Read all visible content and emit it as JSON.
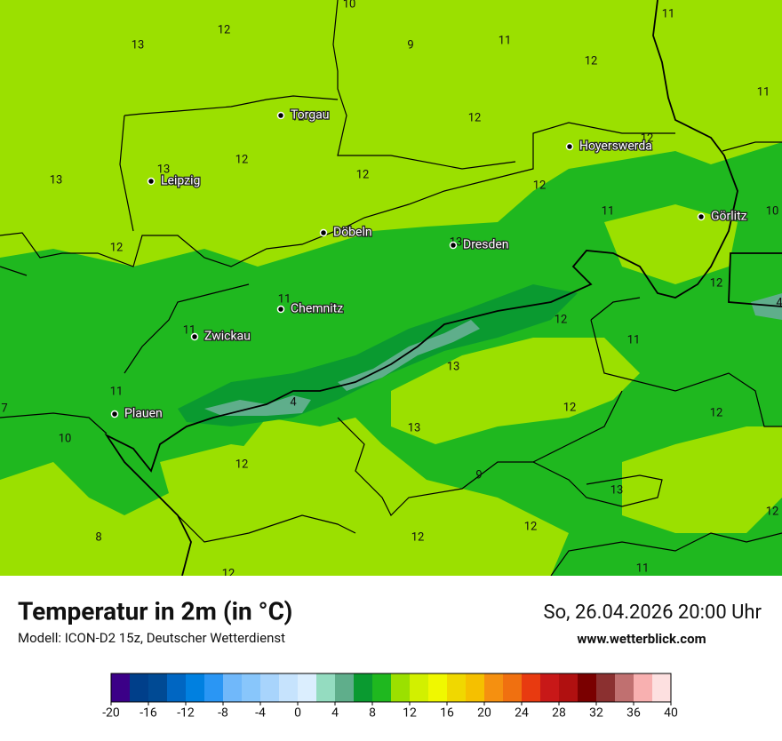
{
  "header": {
    "title": "Temperatur in 2m (in °C)",
    "subtitle": "Modell: ICON-D2 15z, Deutscher Wetterdienst",
    "datetime": "So, 26.04.2026 20:00 Uhr",
    "website": "www.wetterblick.com"
  },
  "cities": [
    "Torgau",
    "Leipzig",
    "Döbeln",
    "Dresden",
    "Hoyerswerda",
    "Görlitz",
    "Chemnitz",
    "Zwickau",
    "Plauen"
  ],
  "temperature_labels": [
    10,
    11,
    13,
    12,
    9,
    11,
    12,
    11,
    12,
    12,
    12,
    13,
    12,
    13,
    12,
    12,
    11,
    10,
    13,
    12,
    11,
    12,
    12,
    11,
    11,
    13,
    11,
    4,
    12,
    12,
    10,
    13,
    12,
    9,
    13,
    8,
    12,
    12,
    12,
    11,
    12,
    7,
    4
  ],
  "legend": {
    "ticks": [
      -20,
      -16,
      -12,
      -8,
      -4,
      0,
      4,
      8,
      12,
      16,
      20,
      24,
      28,
      32,
      36,
      40
    ],
    "colors": [
      "#3b0087",
      "#003f8a",
      "#004a94",
      "#0066c2",
      "#0080e0",
      "#2a96f4",
      "#70b8fa",
      "#88c6fb",
      "#a8d4fc",
      "#c6e3fd",
      "#dbeefe",
      "#94dcc0",
      "#5fae8b",
      "#0a9a30",
      "#1fb81f",
      "#9be000",
      "#d2f000",
      "#f0f800",
      "#f0d800",
      "#f5c000",
      "#f59010",
      "#f07010",
      "#e83a10",
      "#c81818",
      "#b01010",
      "#7a0000",
      "#8b3030",
      "#c07070",
      "#f8b0b0",
      "#fde0e0"
    ]
  }
}
